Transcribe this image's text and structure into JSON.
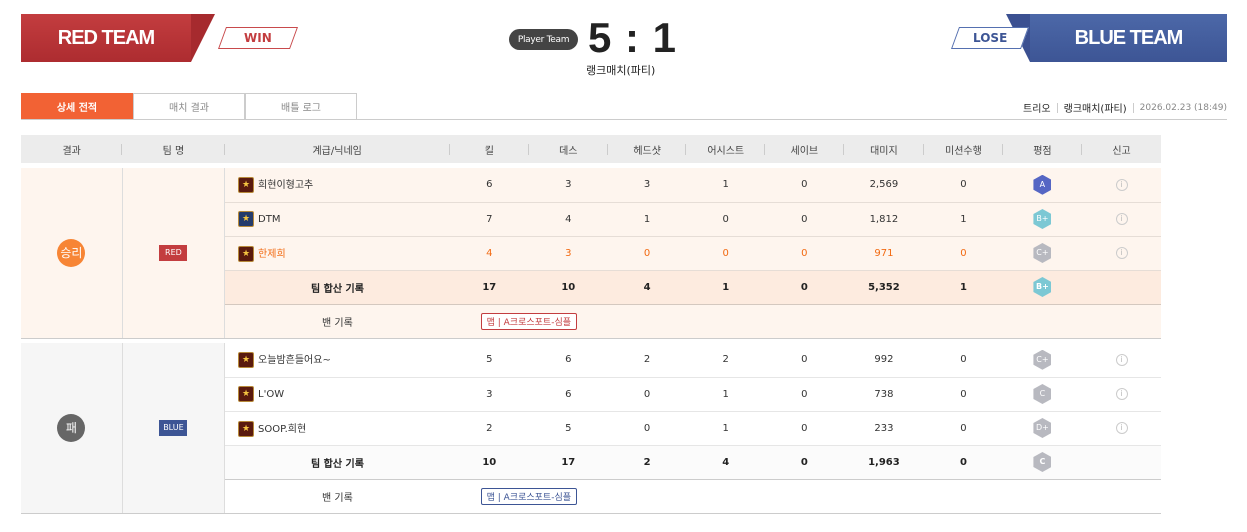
{
  "header": {
    "red": {
      "name": "RED TEAM",
      "result": "WIN",
      "color": "#c33d3f"
    },
    "blue": {
      "name": "BLUE TEAM",
      "result": "LOSE",
      "color": "#3d5595"
    },
    "player_team_badge": "Player Team",
    "score": "5 : 1",
    "match_type": "랭크매치(파티)"
  },
  "tabs": [
    {
      "label": "상세 전적",
      "active": true
    },
    {
      "label": "매치 결과"
    },
    {
      "label": "배틀 로그"
    }
  ],
  "meta": {
    "mode": "트리오",
    "match_type": "랭크매치(파티)",
    "datetime": "2026.02.23  (18:49)"
  },
  "columns": [
    "결과",
    "팀 명",
    "계급/닉네임",
    "킬",
    "데스",
    "헤드샷",
    "어시스트",
    "세이브",
    "대미지",
    "미션수행",
    "평점",
    "신고"
  ],
  "teams": [
    {
      "result": "승리",
      "team": "RED",
      "players": [
        {
          "nick": "희현이형고추",
          "kill": "6",
          "death": "3",
          "hs": "3",
          "assist": "1",
          "save": "0",
          "dmg": "2,569",
          "mission": "0",
          "grade": "A"
        },
        {
          "nick": "DTM",
          "kill": "7",
          "death": "4",
          "hs": "1",
          "assist": "0",
          "save": "0",
          "dmg": "1,812",
          "mission": "1",
          "grade": "B+"
        },
        {
          "nick": "한제희",
          "kill": "4",
          "death": "3",
          "hs": "0",
          "assist": "0",
          "save": "0",
          "dmg": "971",
          "mission": "0",
          "grade": "C+"
        }
      ],
      "total": {
        "label": "팀 합산 기록",
        "kill": "17",
        "death": "10",
        "hs": "4",
        "assist": "1",
        "save": "0",
        "dmg": "5,352",
        "mission": "1",
        "grade": "B+"
      },
      "ban": {
        "label": "밴 기록",
        "tag": "맵",
        "value": "A크로스포트-심플"
      }
    },
    {
      "result": "패",
      "team": "BLUE",
      "players": [
        {
          "nick": "오늘밤흔들어요~",
          "kill": "5",
          "death": "6",
          "hs": "2",
          "assist": "2",
          "save": "0",
          "dmg": "992",
          "mission": "0",
          "grade": "C+"
        },
        {
          "nick": "L'OW",
          "kill": "3",
          "death": "6",
          "hs": "0",
          "assist": "1",
          "save": "0",
          "dmg": "738",
          "mission": "0",
          "grade": "C"
        },
        {
          "nick": "SOOP.희현",
          "kill": "2",
          "death": "5",
          "hs": "0",
          "assist": "1",
          "save": "0",
          "dmg": "233",
          "mission": "0",
          "grade": "D+"
        }
      ],
      "total": {
        "label": "팀 합산 기록",
        "kill": "10",
        "death": "17",
        "hs": "2",
        "assist": "4",
        "save": "0",
        "dmg": "1,963",
        "mission": "0",
        "grade": "C"
      },
      "ban": {
        "label": "밴 기록",
        "tag": "맵",
        "value": "A크로스포트-심플"
      }
    }
  ],
  "grade_colors": {
    "A": "#5566c4",
    "B+": "#7cc8d4",
    "C+": "#b8b9c0",
    "C": "#b8b9c0",
    "D+": "#b8b9c0"
  }
}
